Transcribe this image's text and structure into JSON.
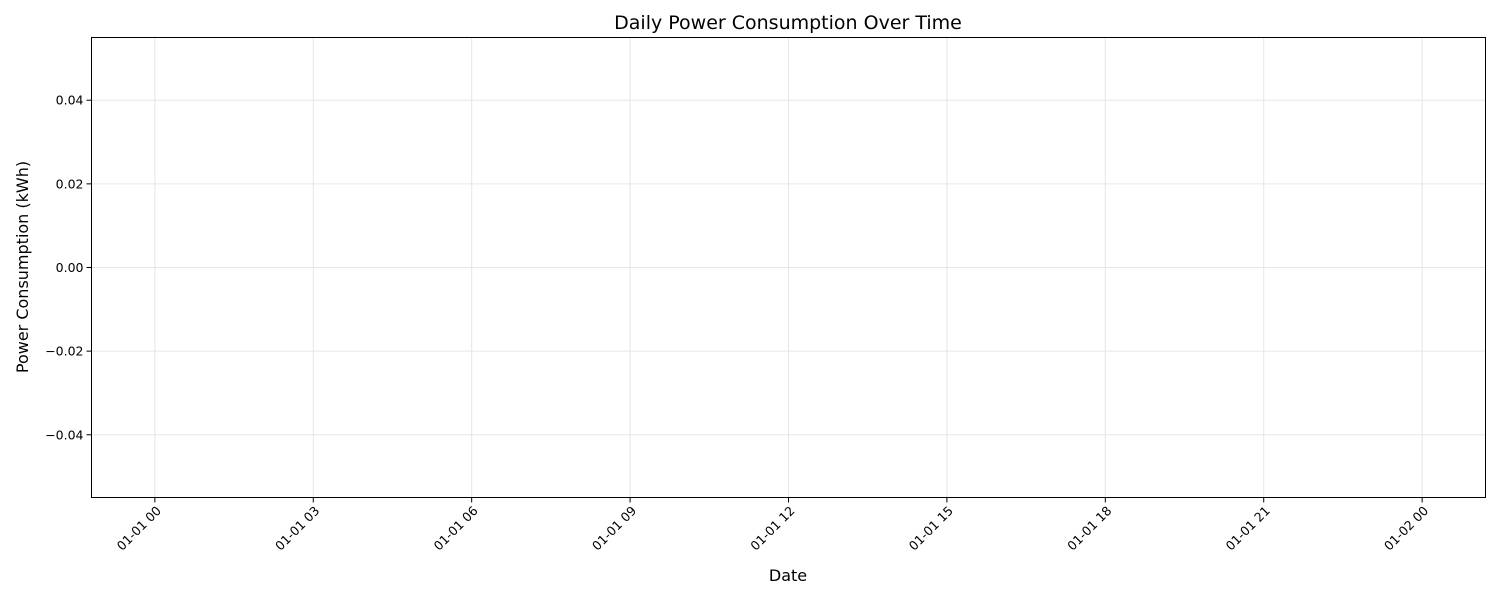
{
  "chart_data": {
    "type": "line",
    "title": "Daily Power Consumption Over Time",
    "xlabel": "Date",
    "ylabel": "Power Consumption (kWh)",
    "x_ticks": [
      "01-01 00",
      "01-01 03",
      "01-01 06",
      "01-01 09",
      "01-01 12",
      "01-01 15",
      "01-01 18",
      "01-01 21",
      "01-02 00"
    ],
    "y_ticks": [
      0.04,
      0.02,
      0.0,
      -0.02,
      -0.04
    ],
    "y_tick_labels": [
      "0.04",
      "0.02",
      "0.00",
      "−0.02",
      "−0.04"
    ],
    "xlim": [
      "12-31 21:36",
      "01-02 02:24"
    ],
    "ylim": [
      -0.055,
      0.055
    ],
    "grid": true,
    "x_tick_rotation": "45 degrees",
    "series": [],
    "colors": {
      "grid": "#e6e6e6",
      "axes": "#000000",
      "background": "#ffffff"
    }
  }
}
